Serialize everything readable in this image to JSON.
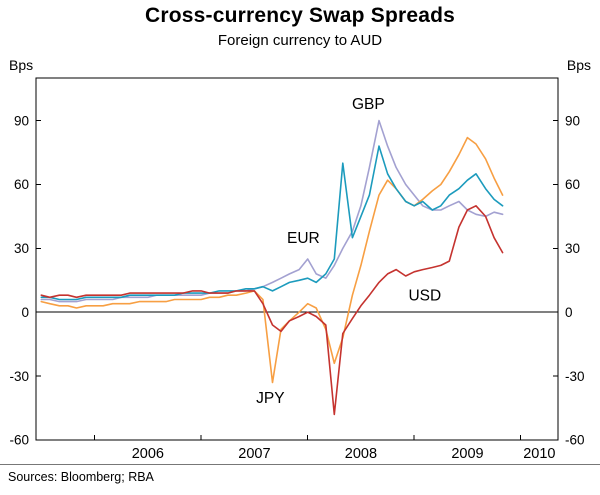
{
  "chart_data": {
    "type": "line",
    "title": "Cross-currency Swap Spreads",
    "subtitle": "Foreign currency to AUD",
    "unit": "Bps",
    "source": "Sources: Bloomberg; RBA",
    "xlim": [
      2005.45,
      2010.35
    ],
    "ylim": [
      -60,
      110
    ],
    "yticks": [
      -60,
      -30,
      0,
      30,
      60,
      90
    ],
    "xticks": [
      2006,
      2007,
      2008,
      2009,
      2010
    ],
    "zero_line": true,
    "grid": false,
    "x": [
      2005.5,
      2005.58,
      2005.67,
      2005.75,
      2005.83,
      2005.92,
      2006.0,
      2006.08,
      2006.17,
      2006.25,
      2006.33,
      2006.42,
      2006.5,
      2006.58,
      2006.67,
      2006.75,
      2006.83,
      2006.92,
      2007.0,
      2007.08,
      2007.17,
      2007.25,
      2007.33,
      2007.42,
      2007.5,
      2007.58,
      2007.67,
      2007.75,
      2007.83,
      2007.92,
      2008.0,
      2008.08,
      2008.17,
      2008.25,
      2008.33,
      2008.42,
      2008.5,
      2008.58,
      2008.67,
      2008.75,
      2008.83,
      2008.92,
      2009.0,
      2009.08,
      2009.17,
      2009.25,
      2009.33,
      2009.42,
      2009.5,
      2009.58,
      2009.67,
      2009.75,
      2009.83
    ],
    "series": [
      {
        "name": "GBP",
        "color": "#a3a1d1",
        "values": [
          6,
          6,
          5,
          5,
          5,
          6,
          6,
          6,
          6,
          7,
          7,
          7,
          7,
          8,
          8,
          8,
          8,
          8,
          8,
          9,
          9,
          9,
          10,
          10,
          11,
          12,
          14,
          16,
          18,
          20,
          25,
          18,
          16,
          22,
          30,
          38,
          50,
          68,
          90,
          78,
          68,
          60,
          55,
          50,
          48,
          48,
          50,
          52,
          48,
          46,
          45,
          47,
          46
        ]
      },
      {
        "name": "JPY",
        "color": "#f79f43",
        "values": [
          5,
          4,
          3,
          3,
          2,
          3,
          3,
          3,
          4,
          4,
          4,
          5,
          5,
          5,
          5,
          6,
          6,
          6,
          6,
          7,
          7,
          8,
          8,
          9,
          10,
          6,
          -33,
          -8,
          -4,
          0,
          4,
          2,
          -8,
          -24,
          -12,
          8,
          22,
          38,
          55,
          62,
          58,
          52,
          50,
          53,
          57,
          60,
          66,
          74,
          82,
          79,
          72,
          63,
          55
        ]
      },
      {
        "name": "EUR",
        "color": "#1c9bbd",
        "values": [
          7,
          7,
          6,
          6,
          6,
          7,
          7,
          7,
          7,
          7,
          8,
          8,
          8,
          8,
          8,
          8,
          9,
          9,
          9,
          9,
          10,
          10,
          10,
          11,
          11,
          12,
          10,
          12,
          14,
          15,
          16,
          14,
          18,
          25,
          70,
          35,
          45,
          55,
          78,
          65,
          58,
          52,
          50,
          52,
          48,
          50,
          55,
          58,
          62,
          65,
          58,
          53,
          50
        ]
      },
      {
        "name": "USD",
        "color": "#c5332f",
        "values": [
          8,
          7,
          8,
          8,
          7,
          8,
          8,
          8,
          8,
          8,
          9,
          9,
          9,
          9,
          9,
          9,
          9,
          10,
          10,
          9,
          9,
          9,
          10,
          10,
          10,
          4,
          -6,
          -9,
          -4,
          -2,
          0,
          -2,
          -6,
          -48,
          -10,
          -3,
          3,
          8,
          14,
          18,
          20,
          17,
          19,
          20,
          21,
          22,
          24,
          40,
          48,
          50,
          45,
          35,
          28
        ]
      }
    ],
    "annotations": [
      {
        "text": "GBP",
        "color": "#a3a1d1",
        "x": 2008.57,
        "y": 98
      },
      {
        "text": "EUR",
        "color": "#1c9bbd",
        "x": 2007.96,
        "y": 35
      },
      {
        "text": "USD",
        "color": "#c5332f",
        "x": 2009.1,
        "y": 8
      },
      {
        "text": "JPY",
        "color": "#f79f43",
        "x": 2007.65,
        "y": -40
      }
    ]
  }
}
